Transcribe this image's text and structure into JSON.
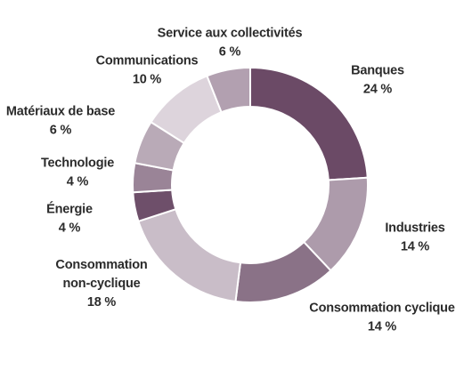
{
  "chart_data": {
    "type": "pie",
    "subtype": "donut",
    "title": "",
    "unit": "%",
    "slices": [
      {
        "label": "Banques",
        "value": 24,
        "value_label": "24 %",
        "color": "#6b4a66"
      },
      {
        "label": "Industries",
        "value": 14,
        "value_label": "14 %",
        "color": "#ad9bab"
      },
      {
        "label": "Consommation cyclique",
        "value": 14,
        "value_label": "14 %",
        "color": "#8a7287"
      },
      {
        "label": "Consommation non-cyclique",
        "label_lines": [
          "Consommation",
          "non-cyclique"
        ],
        "value": 18,
        "value_label": "18 %",
        "color": "#c9bdc8"
      },
      {
        "label": "Énergie",
        "value": 4,
        "value_label": "4 %",
        "color": "#6e4f6a"
      },
      {
        "label": "Technologie",
        "value": 4,
        "value_label": "4 %",
        "color": "#9a8497"
      },
      {
        "label": "Matériaux de base",
        "value": 6,
        "value_label": "6 %",
        "color": "#b9aab7"
      },
      {
        "label": "Communications",
        "value": 10,
        "value_label": "10 %",
        "color": "#ddd4dc"
      },
      {
        "label": "Service aux collectivités",
        "value": 6,
        "value_label": "6 %",
        "color": "#b2a0b0"
      }
    ]
  }
}
